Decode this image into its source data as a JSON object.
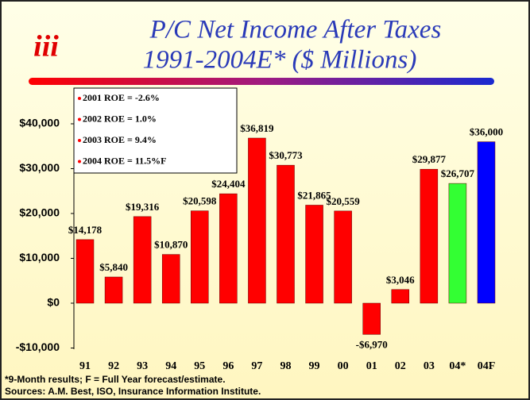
{
  "chart_data": {
    "type": "bar",
    "logo": "iii",
    "title": "P/C Net Income After Taxes",
    "subtitle": "1991-2004E* ($ Millions)",
    "categories": [
      "91",
      "92",
      "93",
      "94",
      "95",
      "96",
      "97",
      "98",
      "99",
      "00",
      "01",
      "02",
      "03",
      "04*",
      "04F"
    ],
    "values": [
      14178,
      5840,
      19316,
      10870,
      20598,
      24404,
      36819,
      30773,
      21865,
      20559,
      -6970,
      3046,
      29877,
      26707,
      36000
    ],
    "value_labels": [
      "$14,178",
      "$5,840",
      "$19,316",
      "$10,870",
      "$20,598",
      "$24,404",
      "$36,819",
      "$30,773",
      "$21,865",
      "$20,559",
      "-$6,970",
      "$3,046",
      "$29,877",
      "$26,707",
      "$36,000"
    ],
    "colors": [
      "#ff0000",
      "#ff0000",
      "#ff0000",
      "#ff0000",
      "#ff0000",
      "#ff0000",
      "#ff0000",
      "#ff0000",
      "#ff0000",
      "#ff0000",
      "#ff0000",
      "#ff0000",
      "#ff0000",
      "#33ff33",
      "#0000ff"
    ],
    "ylim": [
      -10000,
      40000
    ],
    "yticks": [
      {
        "value": -10000,
        "label": "-$10,000"
      },
      {
        "value": 0,
        "label": "$0"
      },
      {
        "value": 10000,
        "label": "$10,000"
      },
      {
        "value": 20000,
        "label": "$20,000"
      },
      {
        "value": 30000,
        "label": "$30,000"
      },
      {
        "value": 40000,
        "label": "$40,000"
      }
    ],
    "grid": false,
    "annotations": [
      "2001 ROE = -2.6%",
      "2002 ROE = 1.0%",
      "2003 ROE = 9.4%",
      "2004 ROE = 11.5%F"
    ],
    "footnotes": [
      "*9-Month results; F = Full Year forecast/estimate.",
      "Sources: A.M. Best, ISO, Insurance Information Institute."
    ]
  }
}
